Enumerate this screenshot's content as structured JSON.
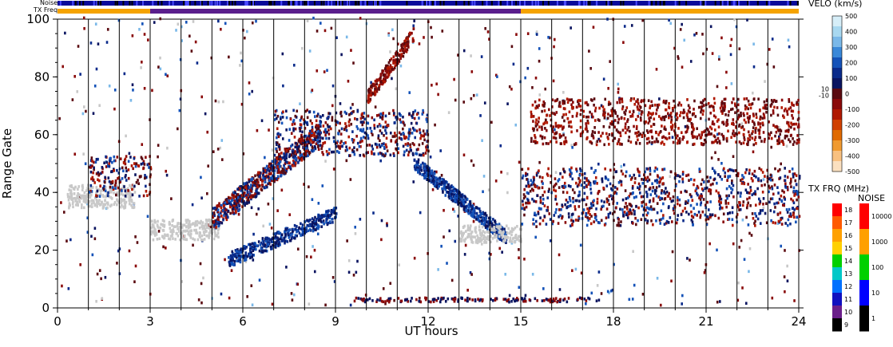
{
  "chart_data": {
    "type": "heatmap",
    "title": "",
    "xlabel": "UT hours",
    "ylabel": "Range Gate",
    "xlim": [
      0,
      24
    ],
    "ylim": [
      0,
      100
    ],
    "x_ticks": [
      "0",
      "3",
      "6",
      "9",
      "12",
      "15",
      "18",
      "21",
      "24"
    ],
    "y_ticks": [
      "0",
      "20",
      "40",
      "60",
      "80",
      "100"
    ],
    "top_bars": {
      "noise_label": "Noise",
      "txfreq_label": "TX Freq",
      "txfreq_segments": [
        {
          "start": 0,
          "end": 3,
          "color": "#f5a300"
        },
        {
          "start": 3,
          "end": 15,
          "color": "#5a1e8c"
        },
        {
          "start": 15,
          "end": 24,
          "color": "#f5a300"
        }
      ]
    },
    "velocity_scale": {
      "title": "VELO (km/s)",
      "ticks": [
        "500",
        "400",
        "300",
        "200",
        "100",
        "0",
        "-100",
        "-200",
        "-300",
        "-400",
        "-500"
      ],
      "side_labels": [
        "10",
        "-10"
      ],
      "colors": [
        "#d6eef8",
        "#a8d8f0",
        "#7ab8e8",
        "#3a88d8",
        "#1452b8",
        "#0a2a8a",
        "#0a1460",
        "#5a0a10",
        "#8a0a0a",
        "#b01800",
        "#d04000",
        "#e06a00",
        "#f09a30",
        "#f8c080",
        "#fbe0c0"
      ]
    },
    "txfreq_scale": {
      "title": "TX FRQ (MHz)",
      "ticks": [
        "18",
        "17",
        "16",
        "15",
        "14",
        "13",
        "12",
        "11",
        "10",
        "9"
      ],
      "colors": [
        "#ff0000",
        "#ff5a00",
        "#ffa000",
        "#ffd000",
        "#00d000",
        "#00c8c8",
        "#0070ff",
        "#1010c0",
        "#6a1e8a",
        "#000000"
      ]
    },
    "noise_scale": {
      "title": "NOISE",
      "ticks": [
        "10000",
        "1000",
        "100",
        "10",
        "1"
      ],
      "colors": [
        "#ff0000",
        "#ffa000",
        "#00d000",
        "#0000ff",
        "#000000"
      ]
    },
    "scatter_color": "#c8c8c8",
    "features": [
      {
        "name": "ground-scatter-early",
        "x": [
          0.3,
          2.5
        ],
        "y": [
          34,
          42
        ],
        "kind": "ground"
      },
      {
        "name": "ground-scatter-3-5",
        "x": [
          3.0,
          5.2
        ],
        "y": [
          23,
          30
        ],
        "kind": "ground"
      },
      {
        "name": "band-early",
        "x": [
          1.0,
          3.0
        ],
        "y": [
          38,
          52
        ],
        "kind": "mixed"
      },
      {
        "name": "rise-5-8",
        "x": [
          5.0,
          8.5
        ],
        "y": [
          30,
          62
        ],
        "kind": "mixed"
      },
      {
        "name": "upper-band-7-12",
        "x": [
          7.0,
          12.0
        ],
        "y": [
          52,
          68
        ],
        "kind": "mixed"
      },
      {
        "name": "lower-arc-5-9",
        "x": [
          5.5,
          9.0
        ],
        "y": [
          14,
          33
        ],
        "kind": "blue"
      },
      {
        "name": "descend-12-14",
        "x": [
          11.5,
          14.5
        ],
        "y": [
          24,
          50
        ],
        "kind": "blue"
      },
      {
        "name": "ground-scatter-13-15",
        "x": [
          13.0,
          15.0
        ],
        "y": [
          22,
          28
        ],
        "kind": "ground"
      },
      {
        "name": "post15-band",
        "x": [
          15.0,
          24.0
        ],
        "y": [
          28,
          48
        ],
        "kind": "mixed"
      },
      {
        "name": "post15-upper",
        "x": [
          15.3,
          24.0
        ],
        "y": [
          56,
          72
        ],
        "kind": "red"
      },
      {
        "name": "arc-10-11",
        "x": [
          10.0,
          11.5
        ],
        "y": [
          72,
          95
        ],
        "kind": "red"
      }
    ]
  }
}
